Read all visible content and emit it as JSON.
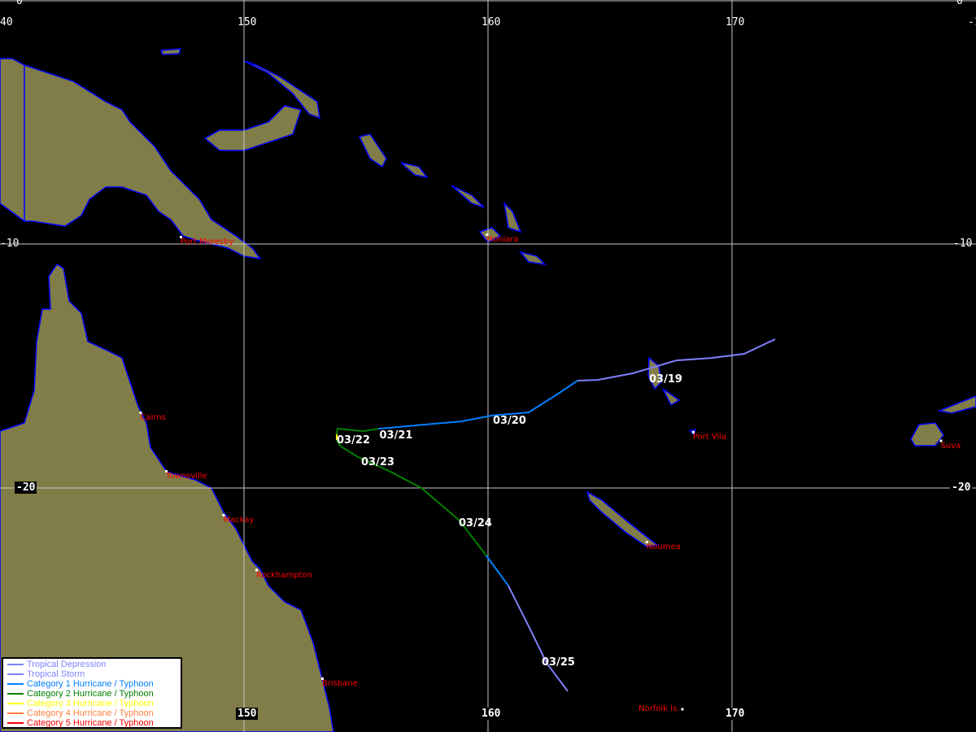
{
  "map": {
    "projection": "equirectangular",
    "lon_range": [
      140,
      180
    ],
    "lat_range": [
      -30,
      0
    ],
    "land_color": "#807d48",
    "coast_color": "#0000ff",
    "grid_color": "#c8c8c8"
  },
  "grid_labels": {
    "top": [
      "0",
      "0"
    ],
    "lon_top": [
      "40",
      "150",
      "160",
      "170",
      "-1"
    ],
    "lat_left": [
      "-10",
      "-20"
    ],
    "lat_right": [
      "-10",
      "-20"
    ],
    "lon_bottom": [
      "150",
      "160",
      "170"
    ]
  },
  "cities": [
    {
      "name": "Port Moresby",
      "lon": 147.4,
      "lat": -9.7
    },
    {
      "name": "Honiara",
      "lon": 159.95,
      "lat": -9.6
    },
    {
      "name": "Cairns",
      "lon": 145.75,
      "lat": -16.9
    },
    {
      "name": "Townsville",
      "lon": 146.8,
      "lat": -19.3
    },
    {
      "name": "Mackay",
      "lon": 149.15,
      "lat": -21.1
    },
    {
      "name": "Rockhampton",
      "lon": 150.5,
      "lat": -23.35
    },
    {
      "name": "Brisbane",
      "lon": 153.2,
      "lat": -27.8
    },
    {
      "name": "Port Vila",
      "lon": 168.4,
      "lat": -17.7
    },
    {
      "name": "Noumea",
      "lon": 166.5,
      "lat": -22.2
    },
    {
      "name": "Suva",
      "lon": 178.55,
      "lat": -18.05
    },
    {
      "name": "Norfolk Is.",
      "lon": 167.95,
      "lat": -29.05
    }
  ],
  "track": [
    {
      "category": "Tropical Storm",
      "points": [
        [
          171.77,
          -13.9
        ],
        [
          170.5,
          -14.5
        ],
        [
          169.17,
          -14.67
        ],
        [
          167.73,
          -14.77
        ],
        [
          165.93,
          -15.3
        ],
        [
          164.5,
          -15.57
        ],
        [
          163.67,
          -15.6
        ]
      ]
    },
    {
      "category": "Category 1 Hurricane / Typhoon",
      "points": [
        [
          163.67,
          -15.6
        ],
        [
          162.93,
          -16.1
        ],
        [
          161.67,
          -16.9
        ],
        [
          160.17,
          -17.03
        ],
        [
          158.9,
          -17.27
        ],
        [
          155.5,
          -17.57
        ]
      ]
    },
    {
      "category": "Category 2 Hurricane / Typhoon",
      "points": [
        [
          155.5,
          -17.57
        ],
        [
          154.9,
          -17.67
        ],
        [
          153.83,
          -17.57
        ],
        [
          153.8,
          -17.8
        ]
      ]
    },
    {
      "category": "Category 3 Hurricane / Typhoon",
      "points": [
        [
          153.8,
          -17.8
        ],
        [
          153.8,
          -18.03
        ]
      ]
    },
    {
      "category": "Category 2 Hurricane / Typhoon",
      "points": [
        [
          153.8,
          -18.03
        ],
        [
          153.93,
          -18.27
        ],
        [
          154.67,
          -18.73
        ],
        [
          156.0,
          -19.33
        ],
        [
          157.27,
          -20.0
        ],
        [
          158.83,
          -21.33
        ],
        [
          159.93,
          -22.77
        ]
      ]
    },
    {
      "category": "Category 1 Hurricane / Typhoon",
      "points": [
        [
          159.93,
          -22.77
        ],
        [
          160.83,
          -24.0
        ]
      ]
    },
    {
      "category": "Tropical Storm",
      "points": [
        [
          160.83,
          -24.0
        ],
        [
          161.67,
          -25.67
        ],
        [
          162.4,
          -27.17
        ],
        [
          163.27,
          -28.33
        ]
      ]
    }
  ],
  "date_labels": [
    {
      "text": "03/19",
      "lon": 166.6,
      "lat": -15.55
    },
    {
      "text": "03/20",
      "lon": 160.2,
      "lat": -17.25
    },
    {
      "text": "03/21",
      "lon": 155.55,
      "lat": -17.85
    },
    {
      "text": "03/22",
      "lon": 153.8,
      "lat": -18.05
    },
    {
      "text": "03/23",
      "lon": 154.8,
      "lat": -18.95
    },
    {
      "text": "03/24",
      "lon": 158.8,
      "lat": -21.45
    },
    {
      "text": "03/25",
      "lon": 162.2,
      "lat": -27.15
    }
  ],
  "legend": [
    {
      "label": "Tropical Depression",
      "color": "#8080ff"
    },
    {
      "label": "Tropical Storm",
      "color": "#8080ff"
    },
    {
      "label": "Category 1 Hurricane / Typhoon",
      "color": "#0080ff"
    },
    {
      "label": "Category 2 Hurricane / Typhoon",
      "color": "#008000"
    },
    {
      "label": "Category 3 Hurricane / Typhoon",
      "color": "#ffff00"
    },
    {
      "label": "Category 4 Hurricane / Typhoon",
      "color": "#ff8040"
    },
    {
      "label": "Category 5 Hurricane / Typhoon",
      "color": "#ff0000"
    }
  ]
}
